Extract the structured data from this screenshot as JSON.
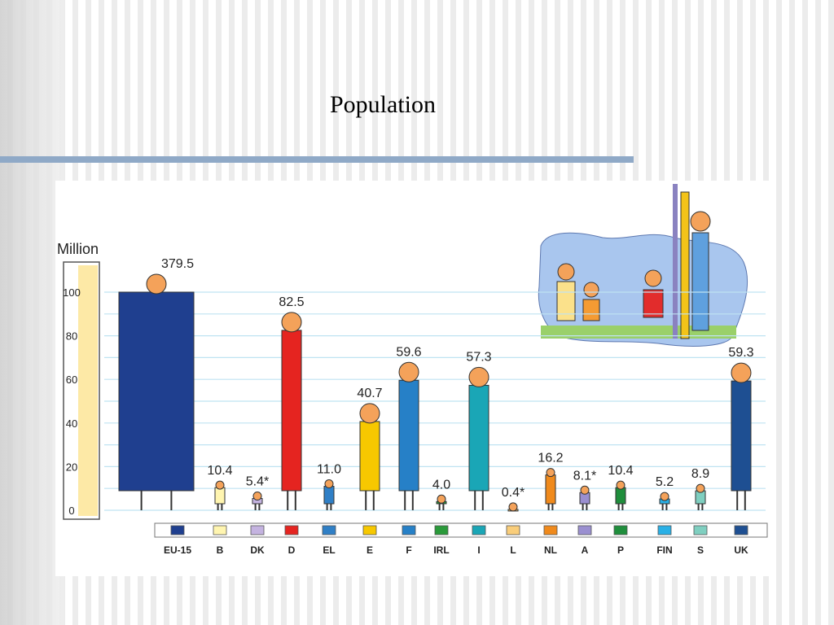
{
  "title": "Population",
  "chart_data": {
    "type": "bar",
    "ylabel": "Million",
    "ylim": [
      0,
      100
    ],
    "yticks": [
      "0",
      "20",
      "40",
      "60",
      "80",
      "100"
    ],
    "categories": [
      "EU-15",
      "B",
      "DK",
      "D",
      "EL",
      "E",
      "F",
      "IRL",
      "I",
      "L",
      "NL",
      "A",
      "P",
      "FIN",
      "S",
      "UK"
    ],
    "values": [
      379.5,
      10.4,
      5.4,
      82.5,
      11.0,
      40.7,
      59.6,
      4.0,
      57.3,
      0.4,
      16.2,
      8.1,
      10.4,
      5.2,
      8.9,
      59.3
    ],
    "value_labels": [
      "379.5",
      "10.4",
      "5.4*",
      "82.5",
      "11.0",
      "40.7",
      "59.6",
      "4.0",
      "57.3",
      "0.4*",
      "16.2",
      "8.1*",
      "10.4",
      "5.2",
      "8.9",
      "59.3"
    ],
    "colors": [
      "#1f3f8f",
      "#fff5b0",
      "#c4b3e0",
      "#e52420",
      "#2f7fc6",
      "#f7c800",
      "#2680c7",
      "#2a9a3a",
      "#1aa6b6",
      "#f9cd7a",
      "#f08a1c",
      "#9a8fd0",
      "#1f8e3c",
      "#29b0e6",
      "#7fcfc0",
      "#1e4f92"
    ],
    "grid": true,
    "legend": "bottom"
  }
}
